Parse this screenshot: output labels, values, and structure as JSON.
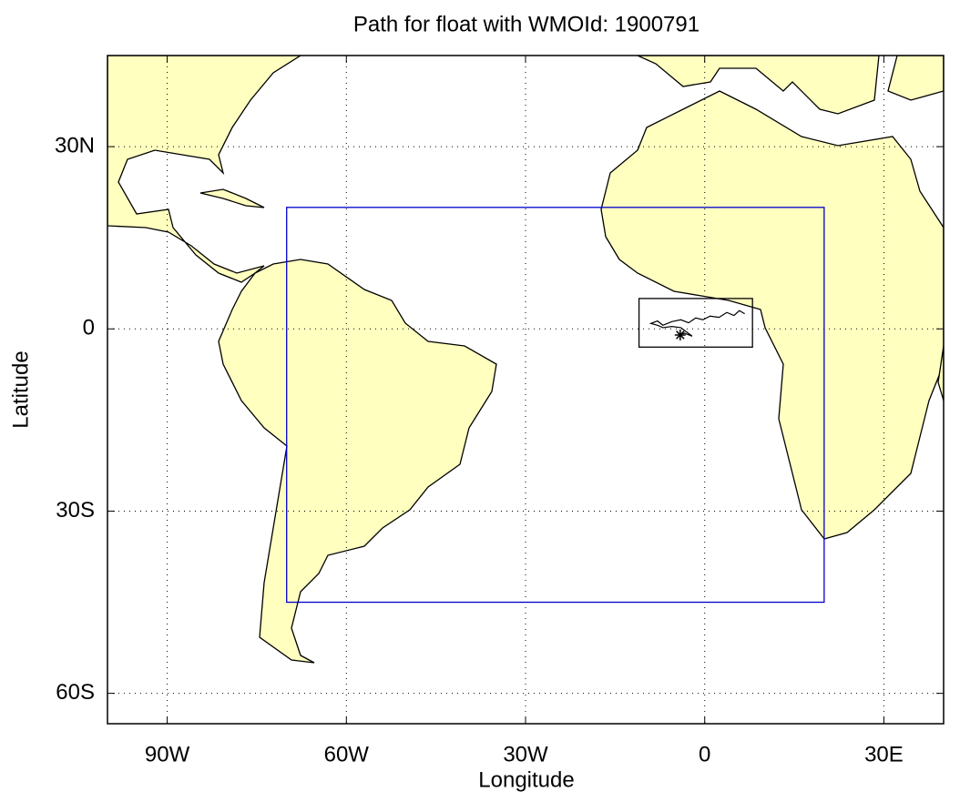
{
  "chart_data": {
    "type": "map",
    "title": "Path for float with WMOId: 1900791",
    "xlabel": "Longitude",
    "ylabel": "Latitude",
    "xlim": [
      -100,
      40
    ],
    "ylim": [
      -65,
      45
    ],
    "xticks": [
      {
        "value": -90,
        "label": "90W"
      },
      {
        "value": -60,
        "label": "60W"
      },
      {
        "value": -30,
        "label": "30W"
      },
      0,
      {
        "value": 30,
        "label": "30E"
      }
    ],
    "yticks": [
      {
        "value": 30,
        "label": "30N"
      },
      0,
      {
        "value": -30,
        "label": "30S"
      },
      {
        "value": -60,
        "label": "60S"
      }
    ],
    "grid": true,
    "land_color": "#ffffc0",
    "boxes": [
      {
        "color": "#0000cc",
        "xlim": [
          -70,
          20
        ],
        "ylim": [
          -45,
          20
        ]
      },
      {
        "color": "#000000",
        "xlim": [
          -11,
          8
        ],
        "ylim": [
          -3,
          5
        ]
      }
    ],
    "series": [
      {
        "color": "#000000",
        "x": [
          -4.1,
          -3.4,
          -2.1,
          -4.0,
          -5.5,
          -7.0,
          -7.9,
          -9.0,
          -7.9,
          -7.0,
          -5.5,
          -4.0,
          -2.7,
          -1.5,
          -0.3,
          0.9,
          2.4,
          3.7,
          4.9,
          5.8,
          6.7
        ],
        "values": [
          -1.0,
          -0.7,
          -1.2,
          0.2,
          0.4,
          0.2,
          0.6,
          0.9,
          1.3,
          0.6,
          1.2,
          1.5,
          1.0,
          1.8,
          1.5,
          2.1,
          1.9,
          2.7,
          2.2,
          3.0,
          2.5
        ]
      }
    ]
  }
}
